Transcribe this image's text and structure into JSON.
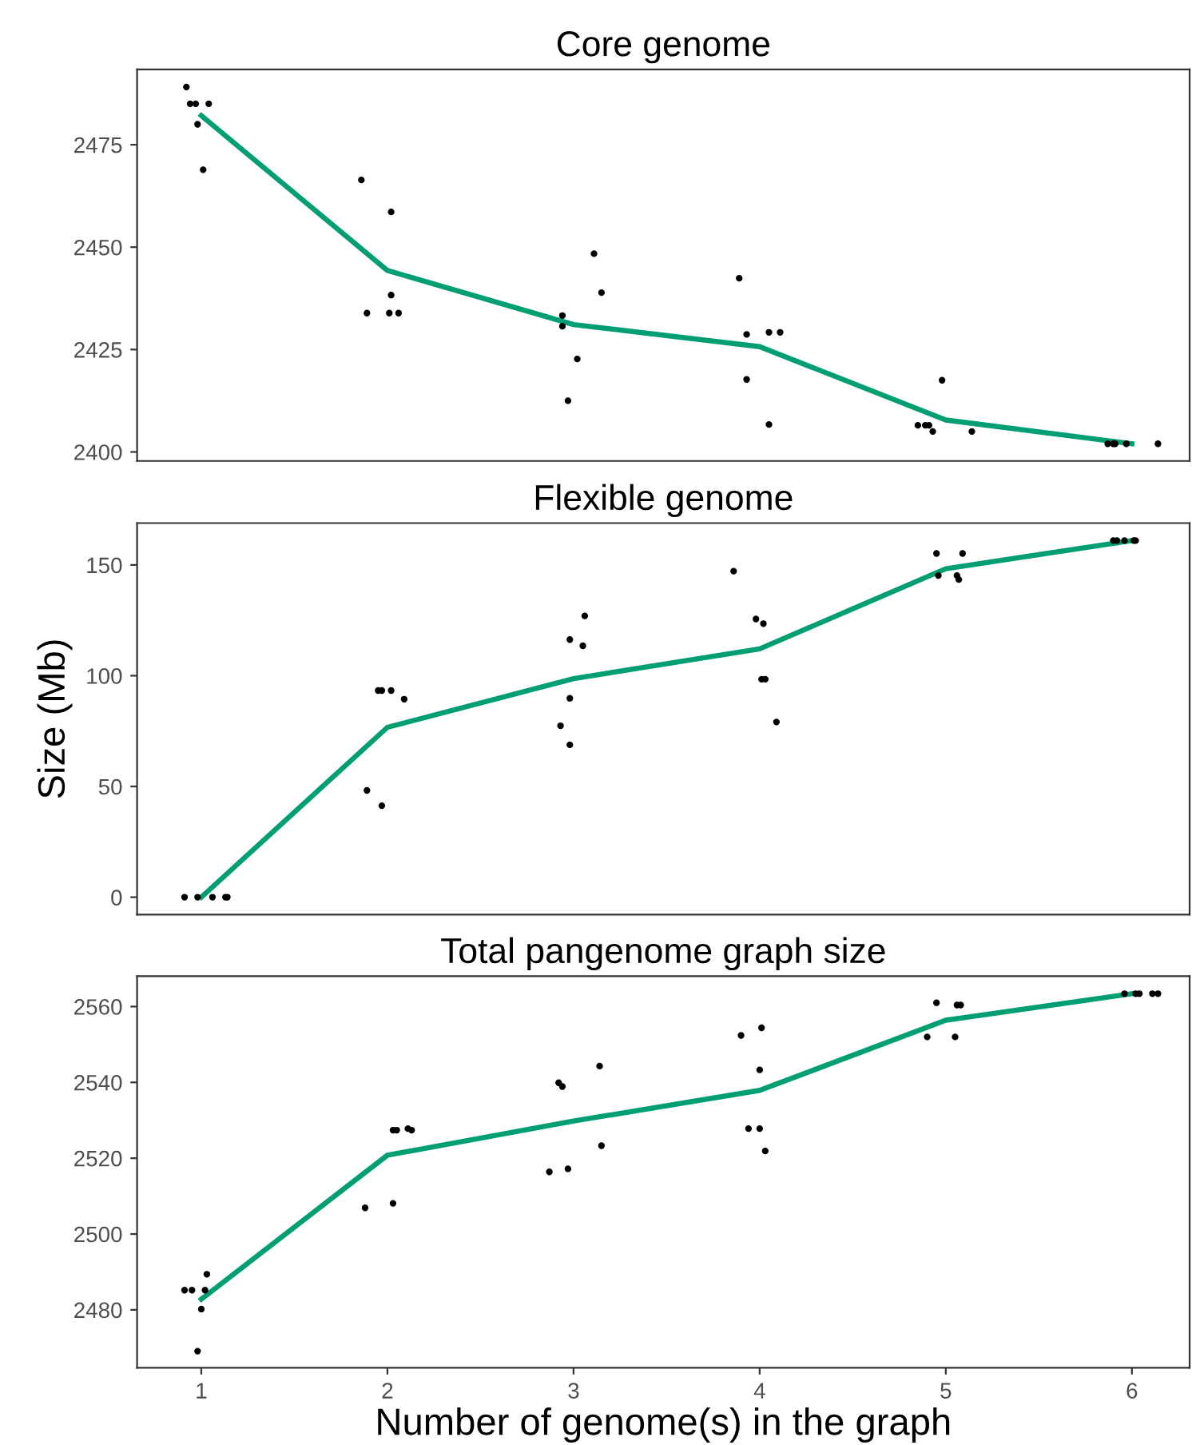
{
  "chart_data": [
    {
      "type": "scatter",
      "title": "Core genome",
      "xlim": [
        0.655,
        6.31
      ],
      "ylim": [
        2397.8,
        2493.4
      ],
      "yticks": [
        2400,
        2425,
        2450,
        2475
      ],
      "tick_labels": "y",
      "grid": false,
      "series": [
        {
          "marker": "circle",
          "color": "#000000",
          "x": [
            0.92,
            0.94,
            0.97,
            0.98,
            1.01,
            1.04,
            1.86,
            1.89,
            2.02,
            2.02,
            2.01,
            2.06,
            2.94,
            2.94,
            2.97,
            3.02,
            3.11,
            3.15,
            3.89,
            3.93,
            3.93,
            4.05,
            4.05,
            4.11,
            4.85,
            4.89,
            4.91,
            4.93,
            4.98,
            5.14,
            5.87,
            5.9,
            5.91,
            5.97,
            6.14
          ],
          "values": [
            2489.1,
            2485,
            2485,
            2480,
            2468.9,
            2485,
            2466.4,
            2433.9,
            2458.6,
            2438.3,
            2433.9,
            2433.9,
            2433.3,
            2430.7,
            2412.5,
            2422.7,
            2448.4,
            2438.9,
            2442.4,
            2428.7,
            2417.7,
            2406.7,
            2429.2,
            2429.2,
            2406.5,
            2406.5,
            2406.5,
            2405,
            2417.5,
            2405,
            2402,
            2402,
            2402,
            2402,
            2402
          ]
        },
        {
          "type": "line",
          "color": "#009e73",
          "marker": "none",
          "line_style": "solid",
          "x": [
            1,
            2,
            3,
            4,
            5,
            6
          ],
          "values": [
            2482.1,
            2444.3,
            2431.1,
            2425.7,
            2407.8,
            2402
          ]
        }
      ]
    },
    {
      "type": "scatter",
      "title": "Flexible genome",
      "ylabel": "Size (Mb)",
      "xlim": [
        0.655,
        6.31
      ],
      "ylim": [
        -7.9,
        168.9
      ],
      "yticks": [
        0,
        50,
        100,
        150
      ],
      "tick_labels": "y",
      "grid": false,
      "series": [
        {
          "marker": "circle",
          "color": "#000000",
          "x": [
            0.91,
            0.98,
            1.06,
            1.13,
            1.14,
            1.89,
            1.95,
            1.97,
            2.02,
            2.09,
            1.97,
            2.93,
            2.98,
            2.98,
            2.98,
            3.05,
            3.06,
            3.86,
            3.98,
            4.02,
            4.01,
            4.03,
            4.09,
            4.95,
            4.96,
            5.06,
            5.07,
            5.09,
            5.9,
            5.92,
            5.96,
            6.01,
            6.02
          ],
          "values": [
            0,
            0,
            0,
            0,
            0,
            48.2,
            93.3,
            93.3,
            93.3,
            89.4,
            41.3,
            77.4,
            68.8,
            116.3,
            89.8,
            113.5,
            127,
            147.2,
            125.6,
            123.5,
            98.4,
            98.4,
            79.1,
            155.2,
            145.2,
            145.2,
            143.4,
            155.2,
            161,
            161,
            161,
            161,
            161
          ]
        },
        {
          "type": "line",
          "color": "#009e73",
          "marker": "none",
          "line_style": "solid",
          "x": [
            1,
            2,
            3,
            4,
            5,
            6
          ],
          "values": [
            0,
            76.7,
            98.7,
            112.1,
            148.3,
            161
          ]
        }
      ]
    },
    {
      "type": "scatter",
      "title": "Total pangenome graph size",
      "xlabel": "Number of genome(s) in the graph",
      "xlim": [
        0.655,
        6.31
      ],
      "xticks": [
        1,
        2,
        3,
        4,
        5,
        6
      ],
      "ylim": [
        2464.7,
        2568.0
      ],
      "yticks": [
        2480,
        2500,
        2520,
        2540,
        2560
      ],
      "grid": false,
      "series": [
        {
          "marker": "circle",
          "color": "#000000",
          "x": [
            0.91,
            0.95,
            1.0,
            1.02,
            1.03,
            0.98,
            1.88,
            2.03,
            2.05,
            2.03,
            2.11,
            2.13,
            2.87,
            2.92,
            2.94,
            2.97,
            3.14,
            3.15,
            3.9,
            3.94,
            4.0,
            4.0,
            4.01,
            4.03,
            4.9,
            4.95,
            5.05,
            5.06,
            5.08,
            5.96,
            6.02,
            6.04,
            6.11,
            6.14
          ],
          "values": [
            2485.2,
            2485.2,
            2480.2,
            2485.2,
            2489.4,
            2469.1,
            2506.9,
            2527.4,
            2527.4,
            2508.1,
            2527.8,
            2527.4,
            2516.4,
            2539.9,
            2538.9,
            2517.2,
            2544.3,
            2523.3,
            2552.4,
            2527.8,
            2527.8,
            2543.3,
            2554.4,
            2521.9,
            2552,
            2561,
            2552,
            2560.4,
            2560.4,
            2563.4,
            2563.4,
            2563.4,
            2563.4,
            2563.4
          ]
        },
        {
          "type": "line",
          "color": "#009e73",
          "marker": "none",
          "line_style": "solid",
          "x": [
            1,
            2,
            3,
            4,
            5,
            6
          ],
          "values": [
            2482.8,
            2520.8,
            2529.8,
            2537.9,
            2556.4,
            2563.4
          ]
        }
      ]
    }
  ]
}
